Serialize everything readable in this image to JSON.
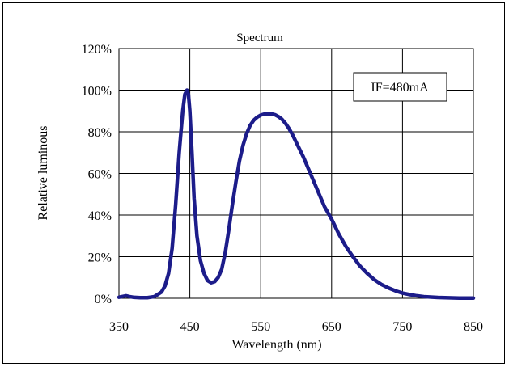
{
  "chart_data": {
    "type": "line",
    "title": "Spectrum",
    "xlabel": "Wavelength (nm)",
    "ylabel": "Relative luminous",
    "xlim": [
      350,
      850
    ],
    "ylim": [
      0,
      120
    ],
    "x_ticks": [
      350,
      450,
      550,
      650,
      750,
      850
    ],
    "y_ticks": [
      0,
      20,
      40,
      60,
      80,
      100,
      120
    ],
    "y_tick_labels": [
      "0%",
      "20%",
      "40%",
      "60%",
      "80%",
      "100%",
      "120%"
    ],
    "grid": true,
    "annotation": "IF=480mA",
    "line_color": "#1c1c8a",
    "series": [
      {
        "x": [
          350,
          360,
          365,
          370,
          380,
          390,
          400,
          410,
          415,
          420,
          425,
          430,
          435,
          440,
          443,
          446,
          448,
          450,
          453,
          456,
          460,
          465,
          470,
          475,
          480,
          485,
          490,
          495,
          500,
          505,
          510,
          515,
          520,
          525,
          530,
          535,
          540,
          545,
          550,
          555,
          560,
          565,
          570,
          575,
          580,
          585,
          590,
          595,
          600,
          610,
          620,
          630,
          640,
          650,
          660,
          670,
          680,
          690,
          700,
          710,
          720,
          730,
          740,
          750,
          760,
          770,
          780,
          790,
          800,
          810,
          820,
          830,
          840,
          850
        ],
        "y": [
          0.5,
          1.2,
          0.8,
          0.5,
          0.3,
          0.3,
          0.8,
          3,
          6,
          12,
          24,
          45,
          70,
          90,
          98,
          100,
          98,
          90,
          70,
          48,
          30,
          18,
          12,
          8.5,
          7.5,
          8,
          10,
          14,
          22,
          33,
          45,
          56,
          66,
          73.5,
          79,
          83,
          85.5,
          87,
          88,
          88.5,
          88.7,
          88.6,
          88.2,
          87.3,
          86,
          84,
          81.5,
          78.5,
          75,
          68,
          60,
          52,
          44,
          38,
          31,
          25,
          20,
          15.5,
          12,
          9,
          6.7,
          5,
          3.6,
          2.5,
          1.8,
          1.2,
          0.8,
          0.6,
          0.4,
          0.3,
          0.2,
          0.1,
          0.1,
          0.1
        ]
      }
    ]
  }
}
